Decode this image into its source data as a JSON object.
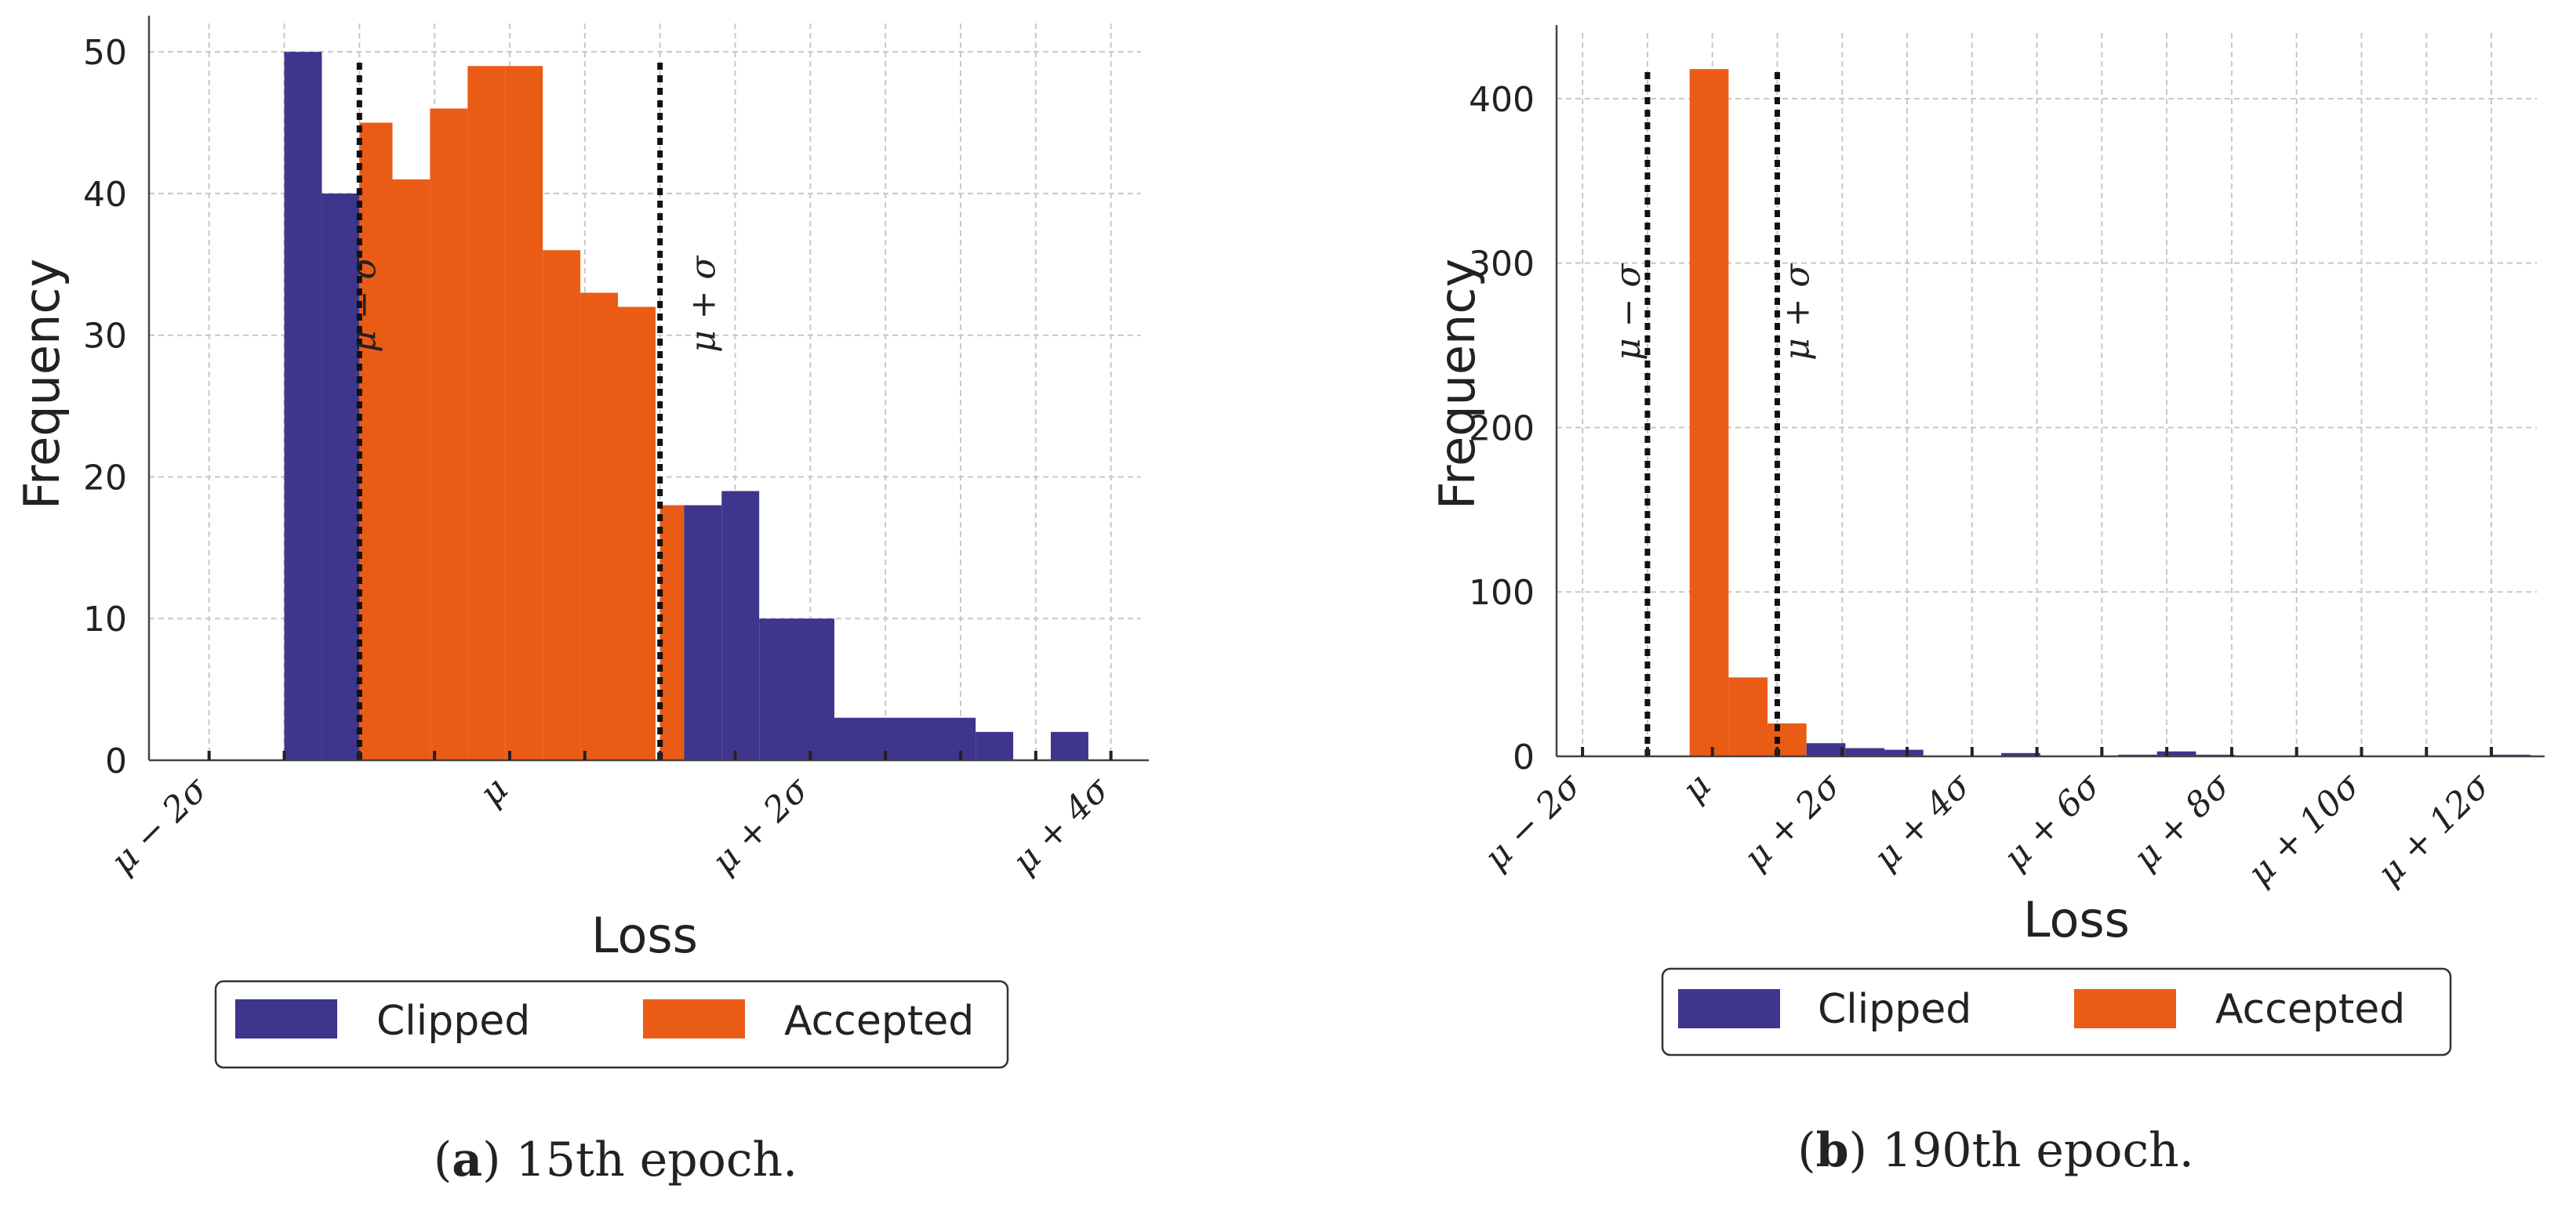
{
  "colors": {
    "clipped": "#3e358c",
    "accepted": "#ea5b16",
    "grid": "#c8c8c8",
    "axis": "#444444",
    "sigma_line": "#111111"
  },
  "chart_data": [
    {
      "type": "bar",
      "panel_label": "a",
      "caption": "15th epoch.",
      "xlabel": "Loss",
      "ylabel": "Frequency",
      "xlim": [
        -2.4,
        4.2
      ],
      "ylim": [
        0,
        52
      ],
      "yticks": [
        0,
        10,
        20,
        30,
        40,
        50
      ],
      "xticks": [
        {
          "value": -2,
          "label": "μ − 2σ"
        },
        {
          "value": 0,
          "label": "μ"
        },
        {
          "value": 2,
          "label": "μ + 2σ"
        },
        {
          "value": 4,
          "label": "μ + 4σ"
        }
      ],
      "minor_xticks": [
        -2.5,
        -1.5,
        -1,
        -0.5,
        0.5,
        1,
        1.5,
        2.5,
        3,
        3.5
      ],
      "sigma_lines": [
        {
          "value": -1,
          "label": "μ − σ"
        },
        {
          "value": 1,
          "label": "μ + σ"
        }
      ],
      "bars": [
        {
          "x0": -1.5,
          "x1": -1.25,
          "value": 50,
          "series": "Clipped"
        },
        {
          "x0": -1.25,
          "x1": -1.0,
          "value": 40,
          "series": "Clipped"
        },
        {
          "x0": -1.0,
          "x1": -0.78,
          "value": 45,
          "series": "Accepted"
        },
        {
          "x0": -0.78,
          "x1": -0.53,
          "value": 41,
          "series": "Accepted"
        },
        {
          "x0": -0.53,
          "x1": -0.28,
          "value": 46,
          "series": "Accepted"
        },
        {
          "x0": -0.28,
          "x1": -0.03,
          "value": 49,
          "series": "Accepted"
        },
        {
          "x0": -0.03,
          "x1": 0.22,
          "value": 49,
          "series": "Accepted"
        },
        {
          "x0": 0.22,
          "x1": 0.47,
          "value": 36,
          "series": "Accepted"
        },
        {
          "x0": 0.47,
          "x1": 0.72,
          "value": 33,
          "series": "Accepted"
        },
        {
          "x0": 0.72,
          "x1": 0.97,
          "value": 32,
          "series": "Accepted"
        },
        {
          "x0": 1.0,
          "x1": 1.16,
          "value": 18,
          "series": "Accepted"
        },
        {
          "x0": 1.16,
          "x1": 1.41,
          "value": 18,
          "series": "Clipped"
        },
        {
          "x0": 1.41,
          "x1": 1.66,
          "value": 19,
          "series": "Clipped"
        },
        {
          "x0": 1.66,
          "x1": 2.16,
          "value": 10,
          "series": "Clipped"
        },
        {
          "x0": 2.16,
          "x1": 3.1,
          "value": 3,
          "series": "Clipped"
        },
        {
          "x0": 3.1,
          "x1": 3.35,
          "value": 2,
          "series": "Clipped"
        },
        {
          "x0": 3.6,
          "x1": 3.85,
          "value": 2,
          "series": "Clipped"
        }
      ],
      "legend": [
        {
          "name": "Clipped",
          "color": "#3e358c"
        },
        {
          "name": "Accepted",
          "color": "#ea5b16"
        }
      ]
    },
    {
      "type": "bar",
      "panel_label": "b",
      "caption": "190th epoch.",
      "xlabel": "Loss",
      "ylabel": "Frequency",
      "xlim": [
        -2.4,
        12.7
      ],
      "ylim": [
        0,
        440
      ],
      "yticks": [
        0,
        100,
        200,
        300,
        400
      ],
      "xticks": [
        {
          "value": -2,
          "label": "μ − 2σ"
        },
        {
          "value": 0,
          "label": "μ"
        },
        {
          "value": 2,
          "label": "μ + 2σ"
        },
        {
          "value": 4,
          "label": "μ + 4σ"
        },
        {
          "value": 6,
          "label": "μ + 6σ"
        },
        {
          "value": 8,
          "label": "μ + 8σ"
        },
        {
          "value": 10,
          "label": "μ + 10σ"
        },
        {
          "value": 12,
          "label": "μ + 12σ"
        }
      ],
      "minor_xticks": [
        -1,
        1,
        3,
        5,
        7,
        9,
        11
      ],
      "sigma_lines": [
        {
          "value": -1,
          "label": "μ − σ"
        },
        {
          "value": 1,
          "label": "μ + σ"
        }
      ],
      "bars": [
        {
          "x0": -0.35,
          "x1": 0.25,
          "value": 418,
          "series": "Accepted"
        },
        {
          "x0": 0.25,
          "x1": 0.85,
          "value": 48,
          "series": "Accepted"
        },
        {
          "x0": 0.85,
          "x1": 1.45,
          "value": 20,
          "series": "Accepted"
        },
        {
          "x0": 1.45,
          "x1": 2.05,
          "value": 8,
          "series": "Clipped"
        },
        {
          "x0": 2.05,
          "x1": 2.65,
          "value": 5,
          "series": "Clipped"
        },
        {
          "x0": 2.65,
          "x1": 3.25,
          "value": 4,
          "series": "Clipped"
        },
        {
          "x0": 4.45,
          "x1": 5.05,
          "value": 2,
          "series": "Clipped"
        },
        {
          "x0": 6.25,
          "x1": 6.85,
          "value": 1,
          "series": "Clipped"
        },
        {
          "x0": 6.85,
          "x1": 7.45,
          "value": 3,
          "series": "Clipped"
        },
        {
          "x0": 7.45,
          "x1": 8.05,
          "value": 1,
          "series": "Clipped"
        },
        {
          "x0": 12.0,
          "x1": 12.6,
          "value": 1,
          "series": "Clipped"
        }
      ],
      "legend": [
        {
          "name": "Clipped",
          "color": "#3e358c"
        },
        {
          "name": "Accepted",
          "color": "#ea5b16"
        }
      ]
    }
  ]
}
